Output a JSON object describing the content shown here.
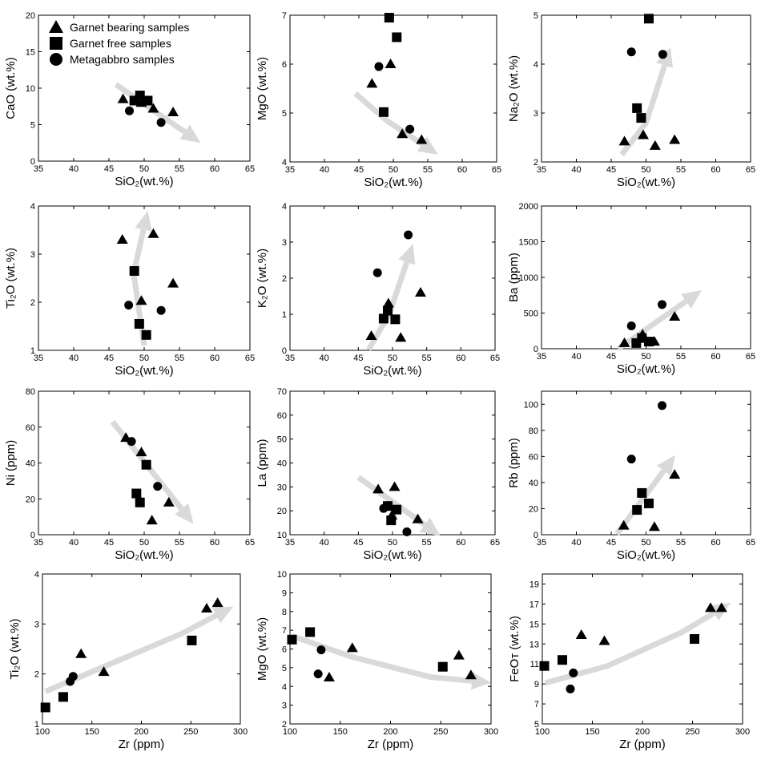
{
  "legend": [
    {
      "label": "Garnet bearing samples",
      "marker": "triangle"
    },
    {
      "label": "Garnet free samples",
      "marker": "square"
    },
    {
      "label": "Metagabbro samples",
      "marker": "circle"
    }
  ],
  "colors": {
    "markers": "#000000",
    "trend_arrow": "#d9d9d9",
    "axes": "#000000"
  },
  "chart_data": [
    {
      "type": "scatter",
      "xlabel": "SiO₂(wt.%)",
      "ylabel": "CaO (wt.%)",
      "xlim": [
        35,
        65
      ],
      "ylim": [
        0,
        20
      ],
      "xticks": [
        35,
        40,
        45,
        50,
        55,
        60,
        65
      ],
      "yticks": [
        0,
        5,
        10,
        15,
        20
      ],
      "series": [
        {
          "name": "Garnet bearing samples",
          "points": [
            [
              47,
              8.5
            ],
            [
              49.6,
              8
            ],
            [
              51.3,
              7.2
            ],
            [
              54.1,
              6.7
            ]
          ]
        },
        {
          "name": "Garnet free samples",
          "points": [
            [
              48.6,
              8.3
            ],
            [
              49.4,
              9
            ],
            [
              50.5,
              8.3
            ]
          ]
        },
        {
          "name": "Metagabbro samples",
          "points": [
            [
              47.9,
              6.9
            ],
            [
              52.4,
              5.3
            ]
          ]
        }
      ],
      "trend": [
        [
          46,
          10.5
        ],
        [
          58,
          2.5
        ]
      ]
    },
    {
      "type": "scatter",
      "xlabel": "SiO₂(wt.%)",
      "ylabel": "MgO (wt.%)",
      "xlim": [
        35,
        65
      ],
      "ylim": [
        4,
        7
      ],
      "xticks": [
        35,
        40,
        45,
        50,
        55,
        60,
        65
      ],
      "yticks": [
        4,
        5,
        6,
        7
      ],
      "series": [
        {
          "name": "Garnet bearing samples",
          "points": [
            [
              46.9,
              5.6
            ],
            [
              49.6,
              6.0
            ],
            [
              51.3,
              4.57
            ],
            [
              54.1,
              4.45
            ]
          ]
        },
        {
          "name": "Garnet free samples",
          "points": [
            [
              49.4,
              6.95
            ],
            [
              50.5,
              6.55
            ],
            [
              48.6,
              5.02
            ]
          ]
        },
        {
          "name": "Metagabbro samples",
          "points": [
            [
              47.9,
              5.95
            ],
            [
              52.4,
              4.67
            ]
          ]
        }
      ],
      "trend": [
        [
          44.5,
          5.4
        ],
        [
          49,
          4.85
        ],
        [
          56.5,
          4.15
        ]
      ]
    },
    {
      "type": "scatter",
      "xlabel": "SiO₂(wt.%)",
      "ylabel": "Na₂O (wt.%)",
      "xlim": [
        35,
        65
      ],
      "ylim": [
        2,
        5
      ],
      "xticks": [
        35,
        40,
        45,
        50,
        55,
        60,
        65
      ],
      "yticks": [
        2,
        3,
        4,
        5
      ],
      "series": [
        {
          "name": "Garnet bearing samples",
          "points": [
            [
              46.9,
              2.42
            ],
            [
              49.6,
              2.55
            ],
            [
              51.3,
              2.33
            ],
            [
              54.1,
              2.45
            ]
          ]
        },
        {
          "name": "Garnet free samples",
          "points": [
            [
              50.4,
              4.93
            ],
            [
              48.7,
              3.1
            ],
            [
              49.3,
              2.9
            ]
          ]
        },
        {
          "name": "Metagabbro samples",
          "points": [
            [
              47.9,
              4.25
            ],
            [
              52.4,
              4.2
            ]
          ]
        }
      ],
      "trend": [
        [
          46.5,
          2.15
        ],
        [
          50,
          2.8
        ],
        [
          53.5,
          4.35
        ]
      ]
    },
    {
      "type": "scatter",
      "xlabel": "SiO₂(wt.%)",
      "ylabel": "Ti₂O (wt.%)",
      "xlim": [
        35,
        65
      ],
      "ylim": [
        1,
        4
      ],
      "xticks": [
        35,
        40,
        45,
        50,
        55,
        60,
        65
      ],
      "yticks": [
        1,
        2,
        3,
        4
      ],
      "series": [
        {
          "name": "Garnet bearing samples",
          "points": [
            [
              46.9,
              3.3
            ],
            [
              51.3,
              3.42
            ],
            [
              54.1,
              2.39
            ],
            [
              49.6,
              2.03
            ]
          ]
        },
        {
          "name": "Garnet free samples",
          "points": [
            [
              48.6,
              2.65
            ],
            [
              49.3,
              1.55
            ],
            [
              50.3,
              1.32
            ]
          ]
        },
        {
          "name": "Metagabbro samples",
          "points": [
            [
              47.8,
              1.94
            ],
            [
              52.4,
              1.83
            ]
          ]
        }
      ],
      "trend": [
        [
          50,
          1.1
        ],
        [
          48.5,
          2.6
        ],
        [
          50.5,
          3.9
        ]
      ]
    },
    {
      "type": "scatter",
      "xlabel": "SiO₂(wt.%)",
      "ylabel": "K₂O (wt.%)",
      "xlim": [
        35,
        65
      ],
      "ylim": [
        0,
        4
      ],
      "xticks": [
        35,
        40,
        45,
        50,
        55,
        60,
        65
      ],
      "yticks": [
        0,
        1,
        2,
        3,
        4
      ],
      "series": [
        {
          "name": "Garnet bearing samples",
          "points": [
            [
              46.9,
              0.4
            ],
            [
              49.4,
              1.3
            ],
            [
              51.2,
              0.35
            ],
            [
              54.1,
              1.6
            ]
          ]
        },
        {
          "name": "Garnet free samples",
          "points": [
            [
              48.7,
              0.88
            ],
            [
              49.3,
              1.1
            ],
            [
              50.4,
              0.86
            ]
          ]
        },
        {
          "name": "Metagabbro samples",
          "points": [
            [
              47.8,
              2.15
            ],
            [
              52.3,
              3.2
            ]
          ]
        }
      ],
      "trend": [
        [
          46.5,
          0.02
        ],
        [
          49.5,
          1.0
        ],
        [
          53,
          2.95
        ]
      ]
    },
    {
      "type": "scatter",
      "xlabel": "SiO₂(wt.%)",
      "ylabel": "Ba (ppm)",
      "xlim": [
        35,
        65
      ],
      "ylim": [
        0,
        2000
      ],
      "xticks": [
        35,
        40,
        45,
        50,
        55,
        60,
        65
      ],
      "yticks": [
        0,
        500,
        1000,
        1500,
        2000
      ],
      "series": [
        {
          "name": "Garnet bearing samples",
          "points": [
            [
              46.9,
              80
            ],
            [
              49.5,
              200
            ],
            [
              51.2,
              100
            ],
            [
              54.1,
              450
            ]
          ]
        },
        {
          "name": "Garnet free samples",
          "points": [
            [
              48.6,
              80
            ],
            [
              49.4,
              150
            ],
            [
              50.4,
              100
            ]
          ]
        },
        {
          "name": "Metagabbro samples",
          "points": [
            [
              47.9,
              320
            ],
            [
              52.3,
              620
            ]
          ]
        }
      ],
      "trend": [
        [
          46,
          0
        ],
        [
          58,
          820
        ]
      ]
    },
    {
      "type": "scatter",
      "xlabel": "SiO₂(wt.%)",
      "ylabel": "Ni (ppm)",
      "xlim": [
        35,
        65
      ],
      "ylim": [
        0,
        80
      ],
      "xticks": [
        35,
        40,
        45,
        50,
        55,
        60,
        65
      ],
      "yticks": [
        0,
        20,
        40,
        60,
        80
      ],
      "series": [
        {
          "name": "Garnet bearing samples",
          "points": [
            [
              47.4,
              54
            ],
            [
              49.6,
              46
            ],
            [
              51.1,
              8
            ],
            [
              53.5,
              18
            ]
          ]
        },
        {
          "name": "Garnet free samples",
          "points": [
            [
              50.3,
              39
            ],
            [
              48.9,
              23
            ],
            [
              49.4,
              18
            ]
          ]
        },
        {
          "name": "Metagabbro samples",
          "points": [
            [
              48.2,
              52
            ],
            [
              51.9,
              27
            ]
          ]
        }
      ],
      "trend": [
        [
          45.5,
          63
        ],
        [
          57,
          6
        ]
      ]
    },
    {
      "type": "scatter",
      "xlabel": "SiO₂(wt.%)",
      "ylabel": "La (ppm)",
      "xlim": [
        35,
        65
      ],
      "ylim": [
        10,
        70
      ],
      "xticks": [
        35,
        40,
        45,
        50,
        55,
        60,
        65
      ],
      "yticks": [
        10,
        20,
        30,
        40,
        50,
        60,
        70
      ],
      "series": [
        {
          "name": "Garnet bearing samples",
          "points": [
            [
              47.9,
              29
            ],
            [
              50.3,
              30
            ],
            [
              49.9,
              18
            ],
            [
              53.7,
              16.5
            ]
          ]
        },
        {
          "name": "Garnet free samples",
          "points": [
            [
              49.3,
              22
            ],
            [
              50.6,
              20.5
            ],
            [
              49.8,
              16
            ]
          ]
        },
        {
          "name": "Metagabbro samples",
          "points": [
            [
              48.7,
              21
            ],
            [
              52.1,
              11.2
            ]
          ]
        }
      ],
      "trend": [
        [
          45,
          34
        ],
        [
          57,
          9.5
        ]
      ]
    },
    {
      "type": "scatter",
      "xlabel": "SiO₂(wt.%)",
      "ylabel": "Rb (ppm)",
      "xlim": [
        35,
        65
      ],
      "ylim": [
        0,
        110
      ],
      "xticks": [
        35,
        40,
        45,
        50,
        55,
        60,
        65
      ],
      "yticks": [
        0,
        20,
        40,
        60,
        80,
        100
      ],
      "series": [
        {
          "name": "Garnet bearing samples",
          "points": [
            [
              46.8,
              7
            ],
            [
              51.2,
              6
            ],
            [
              54.1,
              46
            ]
          ]
        },
        {
          "name": "Garnet free samples",
          "points": [
            [
              49.4,
              32
            ],
            [
              48.7,
              19
            ],
            [
              50.4,
              24
            ]
          ]
        },
        {
          "name": "Metagabbro samples",
          "points": [
            [
              47.9,
              58
            ],
            [
              52.3,
              99
            ]
          ]
        }
      ],
      "trend": [
        [
          45.8,
          0.5
        ],
        [
          54.2,
          61
        ]
      ]
    },
    {
      "type": "scatter",
      "xlabel": "Zr (ppm)",
      "ylabel": "Ti₂O (wt.%)",
      "xlim": [
        100,
        300
      ],
      "ylim": [
        1,
        4
      ],
      "xticks": [
        100,
        150,
        200,
        250,
        300
      ],
      "yticks": [
        1,
        2,
        3,
        4
      ],
      "series": [
        {
          "name": "Garnet bearing samples",
          "points": [
            [
              139,
              2.4
            ],
            [
              162,
              2.04
            ],
            [
              266,
              3.31
            ],
            [
              277,
              3.42
            ]
          ]
        },
        {
          "name": "Garnet free samples",
          "points": [
            [
              103,
              1.33
            ],
            [
              121,
              1.54
            ],
            [
              251,
              2.67
            ]
          ]
        },
        {
          "name": "Metagabbro samples",
          "points": [
            [
              128,
              1.85
            ],
            [
              131,
              1.95
            ]
          ]
        }
      ],
      "trend": [
        [
          103,
          1.65
        ],
        [
          240,
          2.8
        ],
        [
          293,
          3.35
        ]
      ]
    },
    {
      "type": "scatter",
      "xlabel": "Zr (ppm)",
      "ylabel": "MgO (wt.%)",
      "xlim": [
        100,
        300
      ],
      "ylim": [
        2,
        10
      ],
      "xticks": [
        100,
        150,
        200,
        250,
        300
      ],
      "yticks": [
        2,
        3,
        4,
        5,
        6,
        7,
        8,
        9,
        10
      ],
      "series": [
        {
          "name": "Garnet bearing samples",
          "points": [
            [
              139,
              4.48
            ],
            [
              162,
              6.05
            ],
            [
              268,
              5.65
            ],
            [
              280,
              4.6
            ]
          ]
        },
        {
          "name": "Garnet free samples",
          "points": [
            [
              102,
              6.5
            ],
            [
              120,
              6.9
            ],
            [
              252,
              5.05
            ]
          ]
        },
        {
          "name": "Metagabbro samples",
          "points": [
            [
              128,
              4.67
            ],
            [
              131,
              5.95
            ]
          ]
        }
      ],
      "trend": [
        [
          102,
          6.7
        ],
        [
          160,
          5.6
        ],
        [
          240,
          4.5
        ],
        [
          300,
          4.2
        ]
      ]
    },
    {
      "type": "scatter",
      "xlabel": "Zr (ppm)",
      "ylabel": "FeOᴛ (wt.%)",
      "xlim": [
        100,
        300
      ],
      "ylim": [
        5,
        20
      ],
      "xticks": [
        100,
        150,
        200,
        250,
        300
      ],
      "yticks": [
        5,
        7,
        9,
        11,
        13,
        15,
        17,
        19
      ],
      "series": [
        {
          "name": "Garnet bearing samples",
          "points": [
            [
              139,
              13.9
            ],
            [
              162,
              13.3
            ],
            [
              268,
              16.6
            ],
            [
              279,
              16.6
            ]
          ]
        },
        {
          "name": "Garnet free samples",
          "points": [
            [
              102,
              10.8
            ],
            [
              120,
              11.4
            ],
            [
              252,
              13.5
            ]
          ]
        },
        {
          "name": "Metagabbro samples",
          "points": [
            [
              128,
              8.5
            ],
            [
              131,
              10.1
            ]
          ]
        }
      ],
      "trend": [
        [
          103,
          9.1
        ],
        [
          165,
          10.8
        ],
        [
          240,
          14.2
        ],
        [
          288,
          17.1
        ]
      ]
    }
  ]
}
